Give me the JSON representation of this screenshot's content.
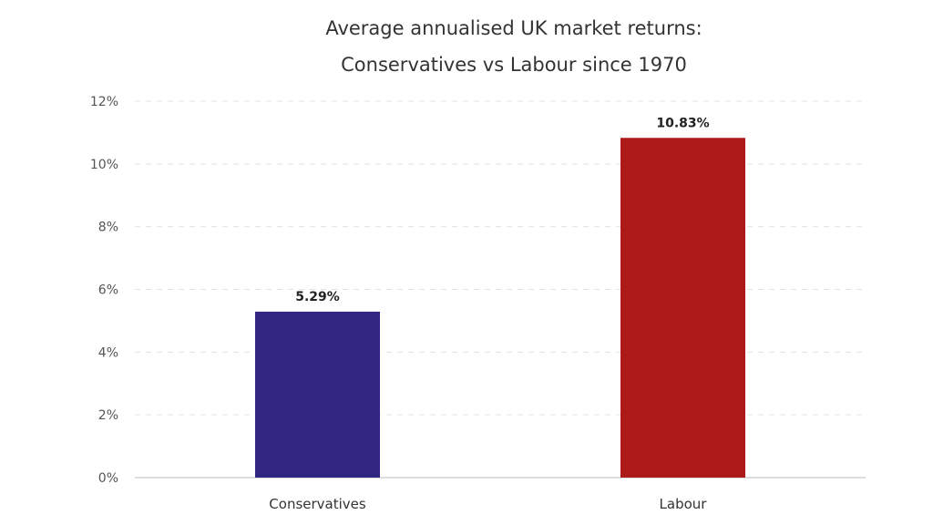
{
  "chart_data": {
    "type": "bar",
    "title": [
      "Average annualised UK market returns:",
      "Conservatives vs Labour since 1970"
    ],
    "xlabel": "",
    "ylabel": "",
    "categories": [
      "Conservatives",
      "Labour"
    ],
    "values": [
      5.29,
      10.83
    ],
    "data_labels": [
      "5.29%",
      "10.83%"
    ],
    "colors": [
      "#312783",
      "#ad1a1a"
    ],
    "ylim": [
      0,
      12
    ],
    "yticks": [
      0,
      2,
      4,
      6,
      8,
      10,
      12
    ],
    "ytick_labels": [
      "0%",
      "2%",
      "4%",
      "6%",
      "8%",
      "10%",
      "12%"
    ],
    "grid": true,
    "legend": "none"
  }
}
